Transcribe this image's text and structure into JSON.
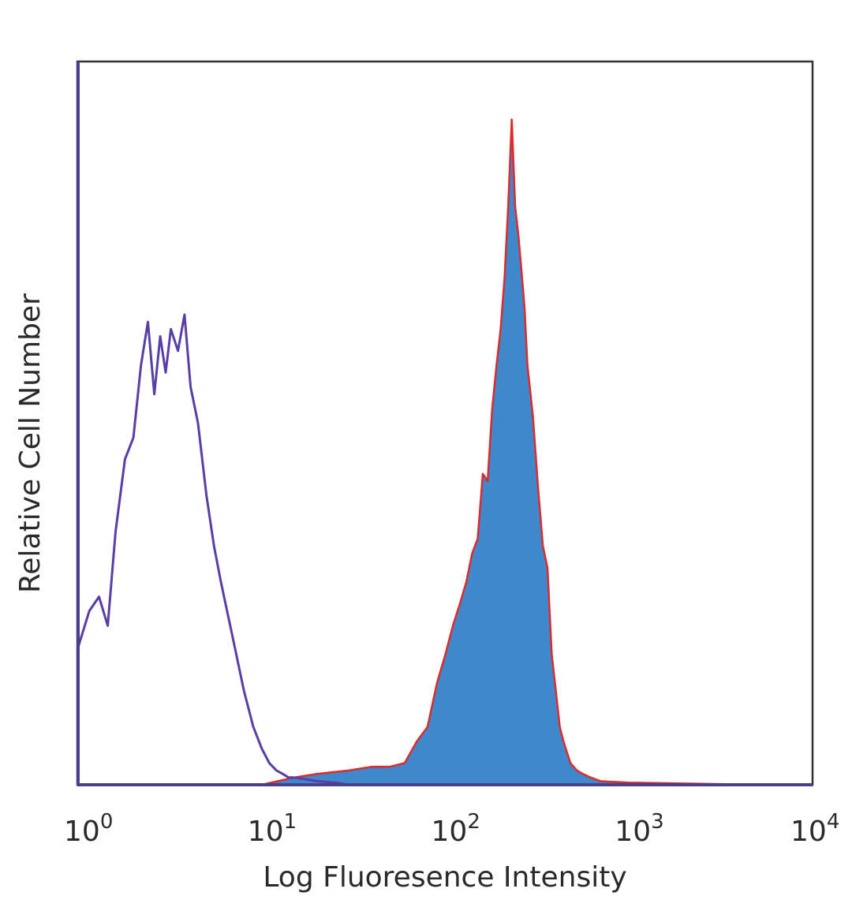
{
  "chart_data": {
    "type": "area",
    "title": "",
    "xlabel": "Log Fluoresence Intensity",
    "ylabel": "Relative Cell Number",
    "x_scale": "log",
    "xlim": [
      1,
      10000
    ],
    "ylim": [
      0,
      100
    ],
    "x_ticks": [
      {
        "base": "10",
        "exp": "0",
        "value": 1
      },
      {
        "base": "10",
        "exp": "1",
        "value": 10
      },
      {
        "base": "10",
        "exp": "2",
        "value": 100
      },
      {
        "base": "10",
        "exp": "3",
        "value": 1000
      },
      {
        "base": "10",
        "exp": "4",
        "value": 10000
      }
    ],
    "grid": false,
    "legend": "none",
    "colors": {
      "control_line": "#5a3ea8",
      "stained_fill": "#3f88cc",
      "stained_line": "#dd2a2a",
      "axes": "#4a3f8a",
      "frame": "#333333"
    },
    "series": [
      {
        "style": "outline",
        "color": "#5a3ea8",
        "x": [
          1.0,
          1.15,
          1.3,
          1.45,
          1.6,
          1.8,
          2.0,
          2.2,
          2.4,
          2.6,
          2.8,
          3.0,
          3.2,
          3.5,
          3.8,
          4.1,
          4.5,
          5.0,
          5.5,
          6.0,
          7.0,
          8.0,
          9.0,
          10.0,
          11.0,
          12.0,
          13.0,
          14.0,
          15.0,
          17.0,
          20.0,
          25.0,
          30.0
        ],
        "values": [
          19,
          24,
          26,
          22,
          35,
          45,
          48,
          58,
          64,
          54,
          62,
          57,
          63,
          60,
          65,
          55,
          50,
          40,
          33,
          28,
          20,
          13,
          8,
          5,
          3,
          2,
          1.5,
          1,
          1,
          0.8,
          0.5,
          0.3,
          0
        ]
      },
      {
        "style": "filled",
        "color": "#3f88cc",
        "outline": "#dd2a2a",
        "x": [
          1.0,
          10.0,
          15.0,
          20.0,
          30.0,
          40.0,
          50.0,
          60.0,
          70.0,
          80.0,
          90.0,
          100.0,
          110.0,
          120.0,
          130.0,
          140.0,
          150.0,
          160.0,
          170.0,
          180.0,
          190.0,
          200.0,
          210.0,
          220.0,
          230.0,
          240.0,
          250.0,
          260.0,
          270.0,
          280.0,
          300.0,
          320.0,
          340.0,
          360.0,
          380.0,
          400.0,
          420.0,
          440.0,
          480.0,
          520.0,
          560.0,
          620.0,
          700.0,
          1000.0,
          5000.0
        ],
        "values": [
          0,
          0,
          1,
          1.5,
          2,
          2.5,
          2.5,
          3,
          6,
          8,
          14,
          18,
          22,
          25,
          28,
          32,
          34,
          43,
          42,
          52,
          58,
          63,
          70,
          80,
          92,
          80,
          76,
          71,
          66,
          58,
          51,
          41,
          33,
          30,
          18,
          13,
          8,
          6,
          3,
          2,
          1.5,
          1,
          0.5,
          0.3,
          0
        ]
      }
    ]
  }
}
